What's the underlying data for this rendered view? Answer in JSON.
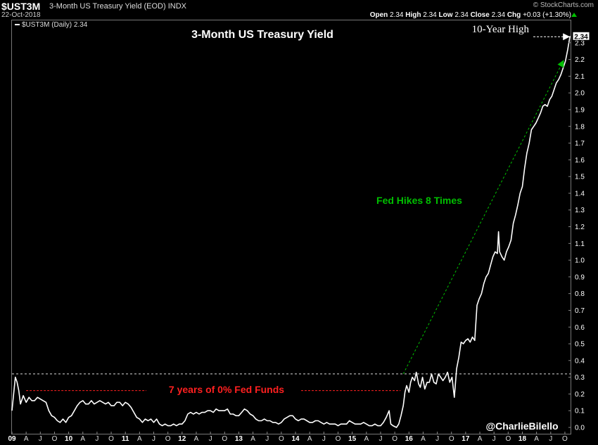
{
  "header": {
    "symbol": "$UST3M",
    "description": "3-Month US Treasury Yield (EOD)",
    "exchange": "INDX",
    "date": "22-Oct-2018",
    "brand": "© StockCharts.com",
    "ohlc": {
      "open_label": "Open",
      "open": "2.34",
      "high_label": "High",
      "high": "2.34",
      "low_label": "Low",
      "low": "2.34",
      "close_label": "Close",
      "close": "2.34",
      "chg_label": "Chg",
      "chg": "+0.03 (+1.30%)"
    }
  },
  "legend": {
    "text": "$UST3M (Daily) 2.34"
  },
  "chart_data": {
    "type": "line",
    "title": "3-Month US Treasury Yield",
    "xlabel": "",
    "ylabel": "",
    "ylim": [
      0,
      2.4
    ],
    "y_ticks": [
      0.0,
      0.1,
      0.2,
      0.3,
      0.4,
      0.5,
      0.6,
      0.7,
      0.8,
      0.9,
      1.0,
      1.1,
      1.2,
      1.3,
      1.4,
      1.5,
      1.6,
      1.7,
      1.8,
      1.9,
      2.0,
      2.1,
      2.2,
      2.3
    ],
    "y_tick_labels": [
      "0.0",
      "0.1",
      "0.2",
      "0.3",
      "0.4",
      "0.5",
      "0.6",
      "0.7",
      "0.8",
      "0.9",
      "1.0",
      "1.1",
      "1.2",
      "1.3",
      "1.4",
      "1.5",
      "1.6",
      "1.7",
      "1.8",
      "1.9",
      "2.0",
      "2.1",
      "2.2",
      "2.3"
    ],
    "x_range": [
      2009.0,
      2018.85
    ],
    "x_ticks": [
      {
        "label": "09",
        "x": 2009.0,
        "year": true
      },
      {
        "label": "A",
        "x": 2009.25
      },
      {
        "label": "J",
        "x": 2009.5
      },
      {
        "label": "O",
        "x": 2009.75
      },
      {
        "label": "10",
        "x": 2010.0,
        "year": true
      },
      {
        "label": "A",
        "x": 2010.25
      },
      {
        "label": "J",
        "x": 2010.5
      },
      {
        "label": "O",
        "x": 2010.75
      },
      {
        "label": "11",
        "x": 2011.0,
        "year": true
      },
      {
        "label": "A",
        "x": 2011.25
      },
      {
        "label": "J",
        "x": 2011.5
      },
      {
        "label": "O",
        "x": 2011.75
      },
      {
        "label": "12",
        "x": 2012.0,
        "year": true
      },
      {
        "label": "A",
        "x": 2012.25
      },
      {
        "label": "J",
        "x": 2012.5
      },
      {
        "label": "O",
        "x": 2012.75
      },
      {
        "label": "13",
        "x": 2013.0,
        "year": true
      },
      {
        "label": "A",
        "x": 2013.25
      },
      {
        "label": "J",
        "x": 2013.5
      },
      {
        "label": "O",
        "x": 2013.75
      },
      {
        "label": "14",
        "x": 2014.0,
        "year": true
      },
      {
        "label": "A",
        "x": 2014.25
      },
      {
        "label": "J",
        "x": 2014.5
      },
      {
        "label": "O",
        "x": 2014.75
      },
      {
        "label": "15",
        "x": 2015.0,
        "year": true
      },
      {
        "label": "A",
        "x": 2015.25
      },
      {
        "label": "J",
        "x": 2015.5
      },
      {
        "label": "O",
        "x": 2015.75
      },
      {
        "label": "16",
        "x": 2016.0,
        "year": true
      },
      {
        "label": "A",
        "x": 2016.25
      },
      {
        "label": "J",
        "x": 2016.5
      },
      {
        "label": "O",
        "x": 2016.75
      },
      {
        "label": "17",
        "x": 2017.0,
        "year": true
      },
      {
        "label": "A",
        "x": 2017.25
      },
      {
        "label": "J",
        "x": 2017.5
      },
      {
        "label": "O",
        "x": 2017.75
      },
      {
        "label": "18",
        "x": 2018.0,
        "year": true
      },
      {
        "label": "A",
        "x": 2018.25
      },
      {
        "label": "J",
        "x": 2018.5
      },
      {
        "label": "O",
        "x": 2018.75
      }
    ],
    "grid": false,
    "series": [
      {
        "name": "$UST3M (Daily)",
        "color": "#ffffff",
        "points": [
          [
            2009.0,
            0.1
          ],
          [
            2009.03,
            0.2
          ],
          [
            2009.06,
            0.3
          ],
          [
            2009.09,
            0.27
          ],
          [
            2009.12,
            0.22
          ],
          [
            2009.15,
            0.14
          ],
          [
            2009.2,
            0.19
          ],
          [
            2009.25,
            0.15
          ],
          [
            2009.3,
            0.18
          ],
          [
            2009.35,
            0.16
          ],
          [
            2009.4,
            0.16
          ],
          [
            2009.45,
            0.18
          ],
          [
            2009.5,
            0.17
          ],
          [
            2009.55,
            0.16
          ],
          [
            2009.6,
            0.15
          ],
          [
            2009.65,
            0.1
          ],
          [
            2009.7,
            0.07
          ],
          [
            2009.75,
            0.06
          ],
          [
            2009.8,
            0.04
          ],
          [
            2009.85,
            0.03
          ],
          [
            2009.9,
            0.05
          ],
          [
            2009.95,
            0.03
          ],
          [
            2010.0,
            0.06
          ],
          [
            2010.05,
            0.07
          ],
          [
            2010.1,
            0.1
          ],
          [
            2010.15,
            0.13
          ],
          [
            2010.2,
            0.15
          ],
          [
            2010.25,
            0.16
          ],
          [
            2010.3,
            0.14
          ],
          [
            2010.35,
            0.14
          ],
          [
            2010.4,
            0.16
          ],
          [
            2010.45,
            0.14
          ],
          [
            2010.5,
            0.15
          ],
          [
            2010.55,
            0.16
          ],
          [
            2010.6,
            0.15
          ],
          [
            2010.65,
            0.14
          ],
          [
            2010.7,
            0.15
          ],
          [
            2010.75,
            0.13
          ],
          [
            2010.8,
            0.13
          ],
          [
            2010.85,
            0.15
          ],
          [
            2010.9,
            0.15
          ],
          [
            2010.95,
            0.13
          ],
          [
            2011.0,
            0.15
          ],
          [
            2011.05,
            0.14
          ],
          [
            2011.1,
            0.12
          ],
          [
            2011.15,
            0.09
          ],
          [
            2011.2,
            0.06
          ],
          [
            2011.25,
            0.05
          ],
          [
            2011.3,
            0.03
          ],
          [
            2011.35,
            0.05
          ],
          [
            2011.4,
            0.04
          ],
          [
            2011.45,
            0.05
          ],
          [
            2011.5,
            0.03
          ],
          [
            2011.55,
            0.05
          ],
          [
            2011.6,
            0.02
          ],
          [
            2011.65,
            0.01
          ],
          [
            2011.7,
            0.02
          ],
          [
            2011.75,
            0.01
          ],
          [
            2011.8,
            0.01
          ],
          [
            2011.85,
            0.02
          ],
          [
            2011.9,
            0.01
          ],
          [
            2011.95,
            0.02
          ],
          [
            2012.0,
            0.02
          ],
          [
            2012.05,
            0.04
          ],
          [
            2012.1,
            0.08
          ],
          [
            2012.15,
            0.09
          ],
          [
            2012.2,
            0.08
          ],
          [
            2012.25,
            0.09
          ],
          [
            2012.3,
            0.08
          ],
          [
            2012.35,
            0.09
          ],
          [
            2012.4,
            0.09
          ],
          [
            2012.45,
            0.1
          ],
          [
            2012.5,
            0.1
          ],
          [
            2012.55,
            0.09
          ],
          [
            2012.6,
            0.11
          ],
          [
            2012.65,
            0.1
          ],
          [
            2012.7,
            0.1
          ],
          [
            2012.75,
            0.1
          ],
          [
            2012.8,
            0.11
          ],
          [
            2012.85,
            0.08
          ],
          [
            2012.9,
            0.08
          ],
          [
            2012.95,
            0.07
          ],
          [
            2013.0,
            0.07
          ],
          [
            2013.05,
            0.09
          ],
          [
            2013.1,
            0.11
          ],
          [
            2013.15,
            0.1
          ],
          [
            2013.2,
            0.08
          ],
          [
            2013.25,
            0.07
          ],
          [
            2013.3,
            0.05
          ],
          [
            2013.35,
            0.04
          ],
          [
            2013.4,
            0.04
          ],
          [
            2013.45,
            0.05
          ],
          [
            2013.5,
            0.04
          ],
          [
            2013.55,
            0.04
          ],
          [
            2013.6,
            0.03
          ],
          [
            2013.65,
            0.03
          ],
          [
            2013.7,
            0.02
          ],
          [
            2013.75,
            0.03
          ],
          [
            2013.8,
            0.05
          ],
          [
            2013.85,
            0.06
          ],
          [
            2013.9,
            0.07
          ],
          [
            2013.95,
            0.07
          ],
          [
            2014.0,
            0.05
          ],
          [
            2014.05,
            0.04
          ],
          [
            2014.1,
            0.05
          ],
          [
            2014.15,
            0.05
          ],
          [
            2014.2,
            0.04
          ],
          [
            2014.25,
            0.03
          ],
          [
            2014.3,
            0.03
          ],
          [
            2014.35,
            0.04
          ],
          [
            2014.4,
            0.04
          ],
          [
            2014.45,
            0.03
          ],
          [
            2014.5,
            0.02
          ],
          [
            2014.55,
            0.03
          ],
          [
            2014.6,
            0.02
          ],
          [
            2014.65,
            0.02
          ],
          [
            2014.7,
            0.02
          ],
          [
            2014.75,
            0.01
          ],
          [
            2014.8,
            0.02
          ],
          [
            2014.85,
            0.02
          ],
          [
            2014.9,
            0.02
          ],
          [
            2014.95,
            0.04
          ],
          [
            2015.0,
            0.03
          ],
          [
            2015.05,
            0.02
          ],
          [
            2015.1,
            0.02
          ],
          [
            2015.15,
            0.02
          ],
          [
            2015.2,
            0.03
          ],
          [
            2015.25,
            0.02
          ],
          [
            2015.3,
            0.01
          ],
          [
            2015.35,
            0.01
          ],
          [
            2015.4,
            0.02
          ],
          [
            2015.45,
            0.01
          ],
          [
            2015.5,
            0.01
          ],
          [
            2015.55,
            0.03
          ],
          [
            2015.6,
            0.06
          ],
          [
            2015.65,
            0.1
          ],
          [
            2015.68,
            0.02
          ],
          [
            2015.72,
            0.01
          ],
          [
            2015.78,
            0.0
          ],
          [
            2015.82,
            0.02
          ],
          [
            2015.86,
            0.07
          ],
          [
            2015.9,
            0.13
          ],
          [
            2015.93,
            0.21
          ],
          [
            2015.96,
            0.25
          ],
          [
            2016.0,
            0.21
          ],
          [
            2016.03,
            0.27
          ],
          [
            2016.06,
            0.3
          ],
          [
            2016.1,
            0.28
          ],
          [
            2016.13,
            0.33
          ],
          [
            2016.17,
            0.26
          ],
          [
            2016.2,
            0.24
          ],
          [
            2016.24,
            0.3
          ],
          [
            2016.28,
            0.23
          ],
          [
            2016.32,
            0.27
          ],
          [
            2016.36,
            0.27
          ],
          [
            2016.4,
            0.32
          ],
          [
            2016.44,
            0.27
          ],
          [
            2016.48,
            0.26
          ],
          [
            2016.52,
            0.32
          ],
          [
            2016.56,
            0.3
          ],
          [
            2016.6,
            0.28
          ],
          [
            2016.64,
            0.3
          ],
          [
            2016.68,
            0.33
          ],
          [
            2016.72,
            0.27
          ],
          [
            2016.76,
            0.3
          ],
          [
            2016.8,
            0.18
          ],
          [
            2016.84,
            0.35
          ],
          [
            2016.88,
            0.42
          ],
          [
            2016.92,
            0.51
          ],
          [
            2016.96,
            0.5
          ],
          [
            2017.0,
            0.52
          ],
          [
            2017.04,
            0.53
          ],
          [
            2017.08,
            0.51
          ],
          [
            2017.12,
            0.54
          ],
          [
            2017.16,
            0.52
          ],
          [
            2017.2,
            0.73
          ],
          [
            2017.24,
            0.77
          ],
          [
            2017.28,
            0.8
          ],
          [
            2017.32,
            0.86
          ],
          [
            2017.36,
            0.9
          ],
          [
            2017.4,
            0.92
          ],
          [
            2017.44,
            0.97
          ],
          [
            2017.48,
            1.02
          ],
          [
            2017.52,
            1.05
          ],
          [
            2017.56,
            1.04
          ],
          [
            2017.58,
            1.17
          ],
          [
            2017.6,
            1.05
          ],
          [
            2017.64,
            1.02
          ],
          [
            2017.68,
            1.0
          ],
          [
            2017.72,
            1.05
          ],
          [
            2017.76,
            1.08
          ],
          [
            2017.8,
            1.12
          ],
          [
            2017.84,
            1.22
          ],
          [
            2017.88,
            1.27
          ],
          [
            2017.92,
            1.33
          ],
          [
            2017.96,
            1.4
          ],
          [
            2018.0,
            1.44
          ],
          [
            2018.04,
            1.55
          ],
          [
            2018.08,
            1.64
          ],
          [
            2018.12,
            1.7
          ],
          [
            2018.16,
            1.78
          ],
          [
            2018.2,
            1.8
          ],
          [
            2018.24,
            1.82
          ],
          [
            2018.28,
            1.85
          ],
          [
            2018.32,
            1.88
          ],
          [
            2018.36,
            1.92
          ],
          [
            2018.4,
            1.93
          ],
          [
            2018.44,
            1.92
          ],
          [
            2018.48,
            1.96
          ],
          [
            2018.52,
            1.98
          ],
          [
            2018.56,
            2.02
          ],
          [
            2018.6,
            2.06
          ],
          [
            2018.64,
            2.08
          ],
          [
            2018.68,
            2.11
          ],
          [
            2018.72,
            2.15
          ],
          [
            2018.76,
            2.19
          ],
          [
            2018.8,
            2.26
          ],
          [
            2018.84,
            2.34
          ]
        ]
      }
    ],
    "reference_line": {
      "y": 0.32,
      "style": "dashed",
      "color": "#ffffff"
    },
    "last_value_label": "2.34",
    "annotations": [
      {
        "text": "10-Year High",
        "color": "#ffffff",
        "arrow_to": [
          2018.84,
          2.34
        ],
        "arrow_color": "#ffffff"
      },
      {
        "text": "Fed Hikes 8 Times",
        "color": "#00c000",
        "arrow_from": [
          2015.9,
          0.32
        ],
        "arrow_to": [
          2018.72,
          2.19
        ],
        "arrow_color": "#00c000"
      },
      {
        "text": "7 years of 0% Fed Funds",
        "color": "#ff2020",
        "dash_from": 2009.25,
        "dash_to": 2015.85,
        "y": 0.22
      },
      {
        "text": "@CharlieBilello",
        "color": "#ffffff"
      }
    ]
  }
}
